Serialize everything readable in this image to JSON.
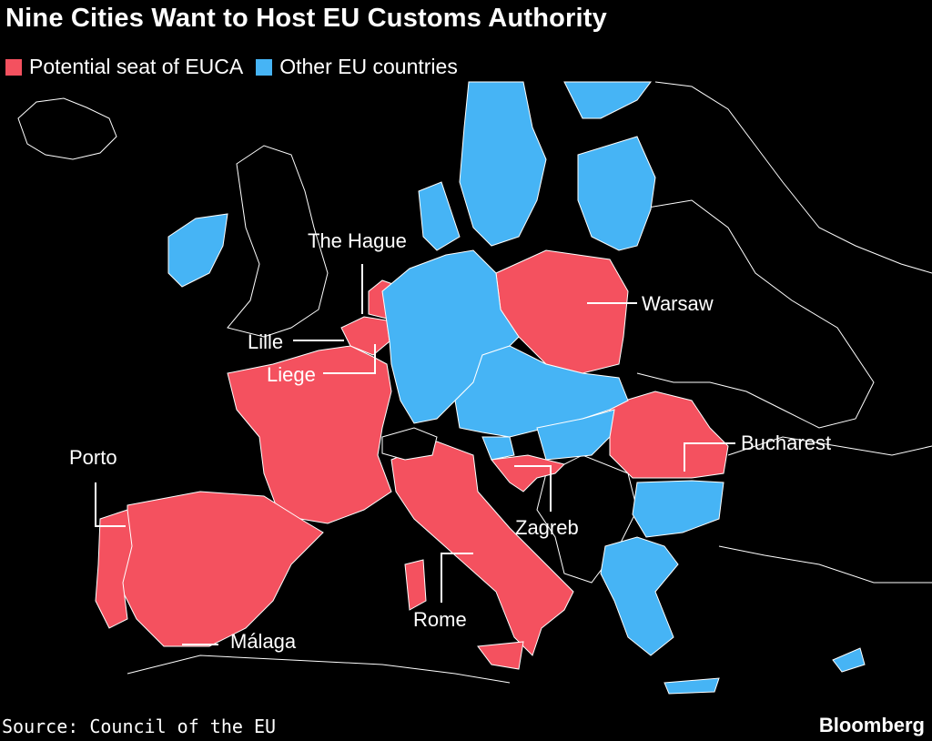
{
  "title": "Nine Cities Want to Host EU Customs Authority",
  "legend": [
    {
      "label": "Potential seat of EUCA",
      "color": "#f4515f"
    },
    {
      "label": "Other EU countries",
      "color": "#46b4f5"
    }
  ],
  "colors": {
    "seat": "#f4515f",
    "other_eu": "#46b4f5",
    "non_eu": "#000000",
    "borders": "#ffffff"
  },
  "cities": {
    "the_hague": "The Hague",
    "warsaw": "Warsaw",
    "lille": "Lille",
    "liege": "Liege",
    "bucharest": "Bucharest",
    "porto": "Porto",
    "zagreb": "Zagreb",
    "rome": "Rome",
    "malaga": "Málaga"
  },
  "source": "Source: Council of the EU",
  "brand": "Bloomberg"
}
